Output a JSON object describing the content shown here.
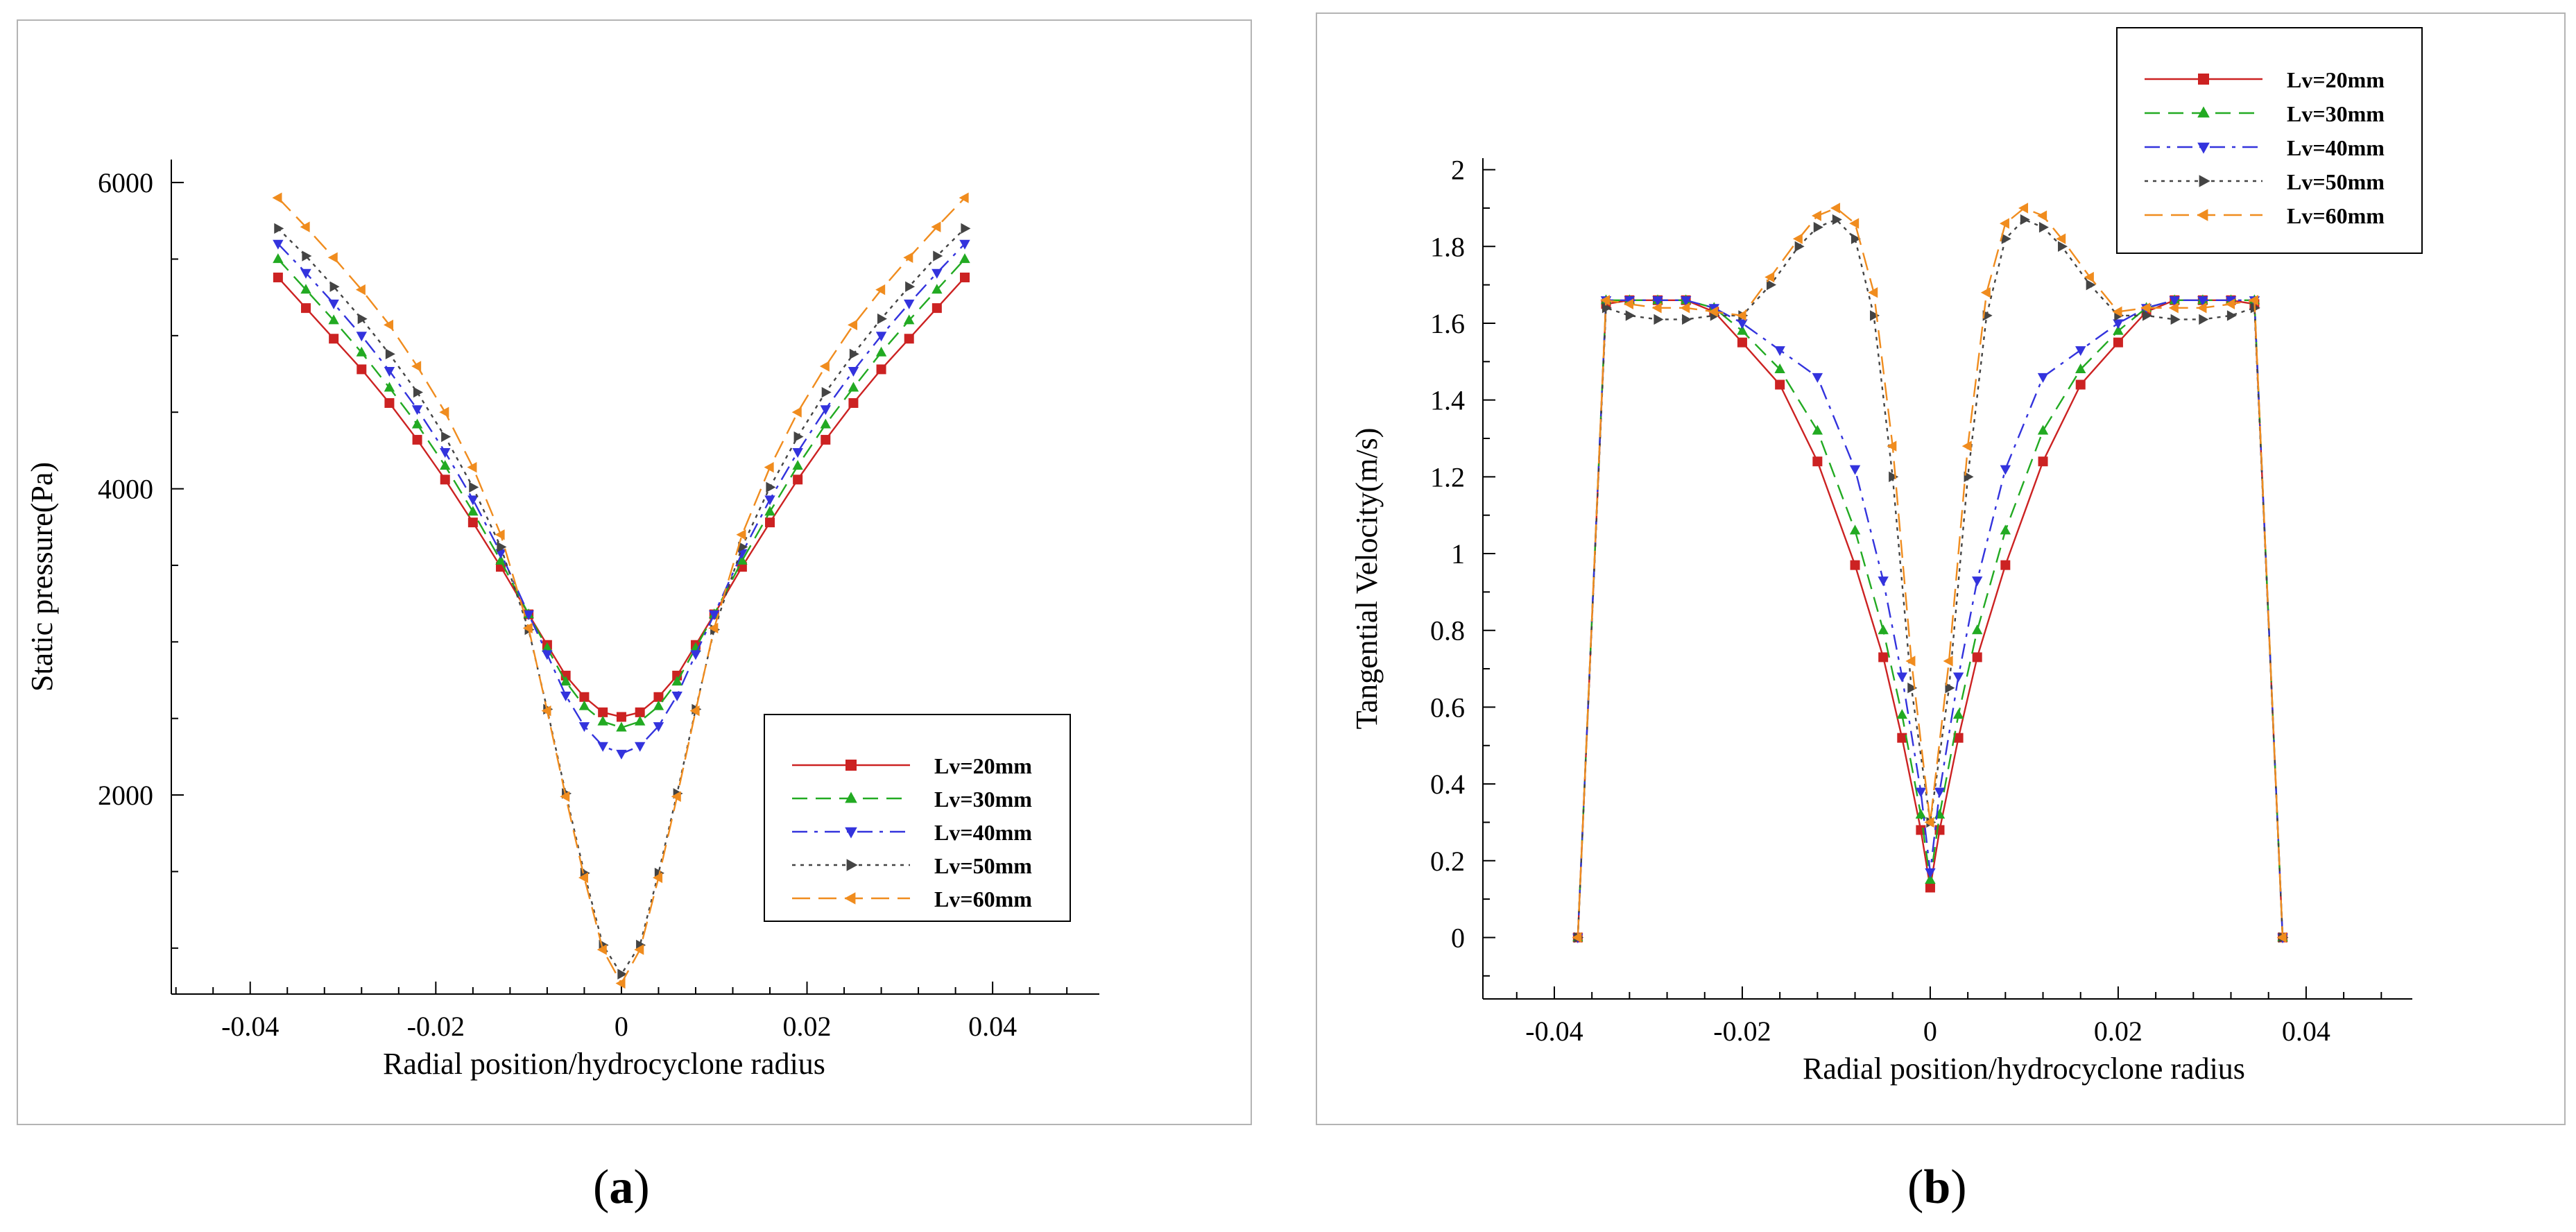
{
  "captions": {
    "a_open": "(",
    "a_letter": "a",
    "a_close": ")",
    "b_open": "(",
    "b_letter": "b",
    "b_close": ")"
  },
  "legend_names": [
    "Lv=20mm",
    "Lv=30mm",
    "Lv=40mm",
    "Lv=50mm",
    "Lv=60mm"
  ],
  "series_colors": [
    "#cc2222",
    "#22aa22",
    "#3333dd",
    "#444444",
    "#f08c1e"
  ],
  "marker_icons": [
    "square-marker-icon",
    "triangle-up-marker-icon",
    "triangle-down-marker-icon",
    "triangle-right-marker-icon",
    "triangle-left-marker-icon"
  ],
  "chart_data": [
    {
      "type": "line",
      "panel": "a",
      "xlabel": "Radial position/hydrocyclone radius",
      "ylabel": "Static  pressure(Pa)",
      "xlim": [
        -0.0485,
        0.0515
      ],
      "ylim": [
        700,
        6150
      ],
      "xticks": [
        -0.04,
        -0.02,
        0,
        0.02,
        0.04
      ],
      "xtick_labels": [
        "-0.04",
        "-0.02",
        "0",
        "0.02",
        "0.04"
      ],
      "yticks": [
        2000,
        4000,
        6000
      ],
      "ytick_labels": [
        "2000",
        "4000",
        "6000"
      ],
      "legend_position": "bottom-right",
      "series": [
        {
          "name": "Lv=20mm",
          "x": [
            -0.037,
            -0.034,
            -0.031,
            -0.028,
            -0.025,
            -0.022,
            -0.019,
            -0.016,
            -0.013,
            -0.01,
            -0.008,
            -0.006,
            -0.004,
            -0.002,
            0,
            0.002,
            0.004,
            0.006,
            0.008,
            0.01,
            0.013,
            0.016,
            0.019,
            0.022,
            0.025,
            0.028,
            0.031,
            0.034,
            0.037
          ],
          "y": [
            5380,
            5180,
            4980,
            4780,
            4560,
            4320,
            4060,
            3780,
            3490,
            3180,
            2980,
            2780,
            2640,
            2540,
            2510,
            2540,
            2640,
            2780,
            2980,
            3180,
            3490,
            3780,
            4060,
            4320,
            4560,
            4780,
            4980,
            5180,
            5380
          ]
        },
        {
          "name": "Lv=30mm",
          "x": [
            -0.037,
            -0.034,
            -0.031,
            -0.028,
            -0.025,
            -0.022,
            -0.019,
            -0.016,
            -0.013,
            -0.01,
            -0.008,
            -0.006,
            -0.004,
            -0.002,
            0,
            0.002,
            0.004,
            0.006,
            0.008,
            0.01,
            0.013,
            0.016,
            0.019,
            0.022,
            0.025,
            0.028,
            0.031,
            0.034,
            0.037
          ],
          "y": [
            5500,
            5300,
            5100,
            4890,
            4660,
            4420,
            4150,
            3850,
            3530,
            3180,
            2960,
            2740,
            2580,
            2480,
            2440,
            2480,
            2580,
            2740,
            2960,
            3180,
            3530,
            3850,
            4150,
            4420,
            4660,
            4890,
            5100,
            5300,
            5500
          ]
        },
        {
          "name": "Lv=40mm",
          "x": [
            -0.037,
            -0.034,
            -0.031,
            -0.028,
            -0.025,
            -0.022,
            -0.019,
            -0.016,
            -0.013,
            -0.01,
            -0.008,
            -0.006,
            -0.004,
            -0.002,
            0,
            0.002,
            0.004,
            0.006,
            0.008,
            0.01,
            0.013,
            0.016,
            0.019,
            0.022,
            0.025,
            0.028,
            0.031,
            0.034,
            0.037
          ],
          "y": [
            5600,
            5410,
            5210,
            5000,
            4770,
            4520,
            4240,
            3930,
            3580,
            3180,
            2920,
            2650,
            2450,
            2320,
            2270,
            2320,
            2450,
            2650,
            2920,
            3180,
            3580,
            3930,
            4240,
            4520,
            4770,
            5000,
            5210,
            5410,
            5600
          ]
        },
        {
          "name": "Lv=50mm",
          "x": [
            -0.037,
            -0.034,
            -0.031,
            -0.028,
            -0.025,
            -0.022,
            -0.019,
            -0.016,
            -0.013,
            -0.01,
            -0.008,
            -0.006,
            -0.004,
            -0.002,
            0,
            0.002,
            0.004,
            0.006,
            0.008,
            0.01,
            0.013,
            0.016,
            0.019,
            0.022,
            0.025,
            0.028,
            0.031,
            0.034,
            0.037
          ],
          "y": [
            5700,
            5520,
            5320,
            5110,
            4880,
            4630,
            4340,
            4010,
            3620,
            3080,
            2560,
            2010,
            1490,
            1020,
            830,
            1020,
            1490,
            2010,
            2560,
            3080,
            3620,
            4010,
            4340,
            4630,
            4880,
            5110,
            5320,
            5520,
            5700
          ]
        },
        {
          "name": "Lv=60mm",
          "x": [
            -0.037,
            -0.034,
            -0.031,
            -0.028,
            -0.025,
            -0.022,
            -0.019,
            -0.016,
            -0.013,
            -0.01,
            -0.008,
            -0.006,
            -0.004,
            -0.002,
            0,
            0.002,
            0.004,
            0.006,
            0.008,
            0.01,
            0.013,
            0.016,
            0.019,
            0.022,
            0.025,
            0.028,
            0.031,
            0.034,
            0.037
          ],
          "y": [
            5900,
            5710,
            5510,
            5300,
            5070,
            4800,
            4500,
            4140,
            3700,
            3090,
            2550,
            1990,
            1460,
            990,
            770,
            990,
            1460,
            1990,
            2550,
            3090,
            3700,
            4140,
            4500,
            4800,
            5070,
            5300,
            5510,
            5710,
            5900
          ]
        }
      ]
    },
    {
      "type": "line",
      "panel": "b",
      "xlabel": "Radial position/hydrocyclone radius",
      "ylabel": "Tangential Velocity(m/s)",
      "xlim": [
        -0.0476,
        0.0513
      ],
      "ylim": [
        -0.16,
        2.03
      ],
      "xticks": [
        -0.04,
        -0.02,
        0,
        0.02,
        0.04
      ],
      "xtick_labels": [
        "-0.04",
        "-0.02",
        "0",
        "0.02",
        "0.04"
      ],
      "yticks": [
        0,
        0.2,
        0.4,
        0.6,
        0.8,
        1,
        1.2,
        1.4,
        1.6,
        1.8,
        2
      ],
      "ytick_labels": [
        "0",
        "0.2",
        "0.4",
        "0.6",
        "0.8",
        "1",
        "1.2",
        "1.4",
        "1.6",
        "1.8",
        "2"
      ],
      "legend_position": "top-right",
      "series": [
        {
          "name": "Lv=20mm",
          "x": [
            -0.0375,
            -0.0345,
            -0.032,
            -0.029,
            -0.026,
            -0.023,
            -0.02,
            -0.016,
            -0.012,
            -0.008,
            -0.005,
            -0.003,
            -0.001,
            0,
            0.001,
            0.003,
            0.005,
            0.008,
            0.012,
            0.016,
            0.02,
            0.023,
            0.026,
            0.029,
            0.032,
            0.0345,
            0.0375
          ],
          "y": [
            0,
            1.65,
            1.66,
            1.66,
            1.66,
            1.63,
            1.55,
            1.44,
            1.24,
            0.97,
            0.73,
            0.52,
            0.28,
            0.13,
            0.28,
            0.52,
            0.73,
            0.97,
            1.24,
            1.44,
            1.55,
            1.63,
            1.66,
            1.66,
            1.66,
            1.65,
            0
          ]
        },
        {
          "name": "Lv=30mm",
          "x": [
            -0.0375,
            -0.0345,
            -0.032,
            -0.029,
            -0.026,
            -0.023,
            -0.02,
            -0.016,
            -0.012,
            -0.008,
            -0.005,
            -0.003,
            -0.001,
            0,
            0.001,
            0.003,
            0.005,
            0.008,
            0.012,
            0.016,
            0.02,
            0.023,
            0.026,
            0.029,
            0.032,
            0.0345,
            0.0375
          ],
          "y": [
            0,
            1.66,
            1.66,
            1.66,
            1.66,
            1.64,
            1.58,
            1.48,
            1.32,
            1.06,
            0.8,
            0.58,
            0.32,
            0.15,
            0.32,
            0.58,
            0.8,
            1.06,
            1.32,
            1.48,
            1.58,
            1.64,
            1.66,
            1.66,
            1.66,
            1.66,
            0
          ]
        },
        {
          "name": "Lv=40mm",
          "x": [
            -0.0375,
            -0.0345,
            -0.032,
            -0.029,
            -0.026,
            -0.023,
            -0.02,
            -0.016,
            -0.012,
            -0.008,
            -0.005,
            -0.003,
            -0.001,
            0,
            0.001,
            0.003,
            0.005,
            0.008,
            0.012,
            0.016,
            0.02,
            0.023,
            0.026,
            0.029,
            0.032,
            0.0345,
            0.0375
          ],
          "y": [
            0,
            1.66,
            1.66,
            1.66,
            1.66,
            1.64,
            1.6,
            1.53,
            1.46,
            1.22,
            0.93,
            0.68,
            0.38,
            0.17,
            0.38,
            0.68,
            0.93,
            1.22,
            1.46,
            1.53,
            1.6,
            1.64,
            1.66,
            1.66,
            1.66,
            1.66,
            0
          ]
        },
        {
          "name": "Lv=50mm",
          "x": [
            -0.0375,
            -0.0345,
            -0.032,
            -0.029,
            -0.026,
            -0.023,
            -0.02,
            -0.017,
            -0.014,
            -0.012,
            -0.01,
            -0.008,
            -0.006,
            -0.004,
            -0.002,
            0,
            0.002,
            0.004,
            0.006,
            0.008,
            0.01,
            0.012,
            0.014,
            0.017,
            0.02,
            0.023,
            0.026,
            0.029,
            0.032,
            0.0345,
            0.0375
          ],
          "y": [
            0,
            1.64,
            1.62,
            1.61,
            1.61,
            1.62,
            1.62,
            1.7,
            1.8,
            1.85,
            1.87,
            1.82,
            1.62,
            1.2,
            0.65,
            0.3,
            0.65,
            1.2,
            1.62,
            1.82,
            1.87,
            1.85,
            1.8,
            1.7,
            1.62,
            1.62,
            1.61,
            1.61,
            1.62,
            1.64,
            0
          ]
        },
        {
          "name": "Lv=60mm",
          "x": [
            -0.0375,
            -0.0345,
            -0.032,
            -0.029,
            -0.026,
            -0.023,
            -0.02,
            -0.017,
            -0.014,
            -0.012,
            -0.01,
            -0.008,
            -0.006,
            -0.004,
            -0.002,
            0,
            0.002,
            0.004,
            0.006,
            0.008,
            0.01,
            0.012,
            0.014,
            0.017,
            0.02,
            0.023,
            0.026,
            0.029,
            0.032,
            0.0345,
            0.0375
          ],
          "y": [
            0,
            1.66,
            1.65,
            1.64,
            1.64,
            1.63,
            1.62,
            1.72,
            1.82,
            1.88,
            1.9,
            1.86,
            1.68,
            1.28,
            0.72,
            0.3,
            0.72,
            1.28,
            1.68,
            1.86,
            1.9,
            1.88,
            1.82,
            1.72,
            1.63,
            1.64,
            1.64,
            1.64,
            1.65,
            1.66,
            0
          ]
        }
      ]
    }
  ]
}
